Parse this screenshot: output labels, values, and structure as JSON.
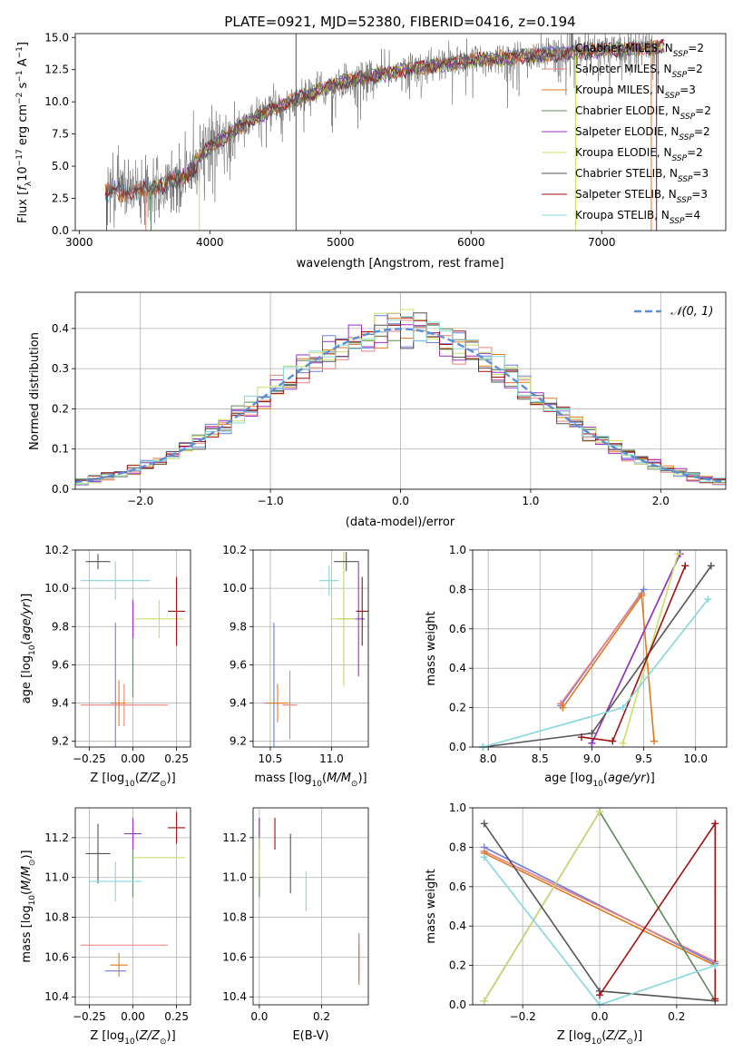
{
  "figure": {
    "title": "PLATE=0921, MJD=52380, FIBERID=0416, z=0.194"
  },
  "colors": {
    "chabrier_miles": "#6b7ee5",
    "salpeter_miles": "#e8807f",
    "kroupa_miles": "#e07a1f",
    "chabrier_elodie": "#5b8c5a",
    "salpeter_elodie": "#9b30c0",
    "kroupa_elodie": "#c8e06a",
    "chabrier_stelib": "#555555",
    "salpeter_stelib": "#a01010",
    "kroupa_stelib": "#86d7de",
    "normal_curve": "#5a8fd6"
  },
  "chart_data": [
    {
      "id": "spectrum",
      "type": "line",
      "xlabel": "wavelength [Angstrom, rest frame]",
      "ylabel": "Flux [f_λ 10^-17 erg cm^-2 s^-1 A^-1]",
      "xlim": [
        2970,
        7950
      ],
      "ylim": [
        0,
        15.3
      ],
      "xticks": [
        3000,
        4000,
        5000,
        6000,
        7000
      ],
      "yticks": [
        0.0,
        2.5,
        5.0,
        7.5,
        10.0,
        12.5,
        15.0
      ],
      "grid": false,
      "legend_position": "upper-right",
      "data_envelope": {
        "x": [
          3200,
          3500,
          3800,
          4000,
          4300,
          4600,
          5000,
          5500,
          6000,
          6500,
          7000,
          7500
        ],
        "y": [
          3.3,
          3.5,
          4.5,
          6.5,
          8.5,
          10.0,
          11.5,
          12.5,
          13.2,
          13.6,
          14.0,
          14.3
        ]
      },
      "legend": [
        {
          "label": "Chabrier MILES, N",
          "sub": "SSP",
          "suffix": "=2",
          "color_key": "chabrier_miles"
        },
        {
          "label": "Salpeter MILES, N",
          "sub": "SSP",
          "suffix": "=2",
          "color_key": "salpeter_miles"
        },
        {
          "label": "Kroupa MILES, N",
          "sub": "SSP",
          "suffix": "=3",
          "color_key": "kroupa_miles"
        },
        {
          "label": "Chabrier ELODIE, N",
          "sub": "SSP",
          "suffix": "=2",
          "color_key": "chabrier_elodie"
        },
        {
          "label": "Salpeter ELODIE, N",
          "sub": "SSP",
          "suffix": "=2",
          "color_key": "salpeter_elodie"
        },
        {
          "label": "Kroupa ELODIE, N",
          "sub": "SSP",
          "suffix": "=2",
          "color_key": "kroupa_elodie"
        },
        {
          "label": "Chabrier STELIB, N",
          "sub": "SSP",
          "suffix": "=3",
          "color_key": "chabrier_stelib"
        },
        {
          "label": "Salpeter STELIB, N",
          "sub": "SSP",
          "suffix": "=3",
          "color_key": "salpeter_stelib"
        },
        {
          "label": "Kroupa STELIB, N",
          "sub": "SSP",
          "suffix": "=4",
          "color_key": "kroupa_stelib"
        }
      ]
    },
    {
      "id": "residuals",
      "type": "histogram",
      "xlabel": "(data-model)/error",
      "ylabel": "Normed distribution",
      "xlim": [
        -2.5,
        2.5
      ],
      "ylim": [
        0,
        0.49
      ],
      "xticks": [
        -2,
        -1,
        0,
        1,
        2
      ],
      "yticks": [
        0.0,
        0.1,
        0.2,
        0.3,
        0.4
      ],
      "grid": true,
      "legend_position": "upper-right",
      "legend_label": "𝒩(0, 1)",
      "bin_width": 0.1
    },
    {
      "id": "z_age",
      "type": "errorbar",
      "xlabel": "Z [log10(Z/Z☉)]",
      "ylabel": "age [log10(age/yr)]",
      "xlim": [
        -0.33,
        0.33
      ],
      "ylim": [
        9.17,
        10.2
      ],
      "xticks": [
        -0.25,
        0.0,
        0.25
      ],
      "yticks": [
        9.2,
        9.4,
        9.6,
        9.8,
        10.0,
        10.2
      ],
      "grid": true,
      "points": [
        {
          "c": "chabrier_miles",
          "x": -0.1,
          "y": 9.4,
          "xerr": 0.03,
          "yerr": 0.42
        },
        {
          "c": "salpeter_miles",
          "x": -0.05,
          "y": 9.39,
          "xerr": 0.25,
          "yerr": 0.11
        },
        {
          "c": "kroupa_miles",
          "x": -0.08,
          "y": 9.4,
          "xerr": 0.04,
          "yerr": 0.12
        },
        {
          "c": "chabrier_elodie",
          "x": 0.0,
          "y": 9.68,
          "xerr": 0.0,
          "yerr": 0.25
        },
        {
          "c": "salpeter_elodie",
          "x": 0.0,
          "y": 9.84,
          "xerr": 0.0,
          "yerr": 0.1
        },
        {
          "c": "kroupa_elodie",
          "x": 0.15,
          "y": 9.84,
          "xerr": 0.14,
          "yerr": 0.1
        },
        {
          "c": "chabrier_stelib",
          "x": -0.2,
          "y": 10.14,
          "xerr": 0.07,
          "yerr": 0.04
        },
        {
          "c": "salpeter_stelib",
          "x": 0.25,
          "y": 9.88,
          "xerr": 0.05,
          "yerr": 0.18
        },
        {
          "c": "kroupa_stelib",
          "x": -0.1,
          "y": 10.04,
          "xerr": 0.2,
          "yerr": 0.1
        }
      ]
    },
    {
      "id": "mass_age",
      "type": "errorbar",
      "xlabel": "mass [log10(M/M☉)]",
      "ylabel": "",
      "xlim": [
        10.36,
        11.3
      ],
      "ylim": [
        9.17,
        10.2
      ],
      "xticks": [
        10.5,
        11.0
      ],
      "yticks": [
        9.2,
        9.4,
        9.6,
        9.8,
        10.0,
        10.2
      ],
      "grid": true,
      "points": [
        {
          "c": "chabrier_miles",
          "x": 10.53,
          "y": 9.4,
          "xerr": 0.08,
          "yerr": 0.42
        },
        {
          "c": "salpeter_miles",
          "x": 10.66,
          "y": 9.39,
          "xerr": 0.06,
          "yerr": 0.18
        },
        {
          "c": "kroupa_miles",
          "x": 10.56,
          "y": 9.4,
          "xerr": 0.09,
          "yerr": 0.1
        },
        {
          "c": "chabrier_elodie",
          "x": 11.1,
          "y": 9.84,
          "xerr": 0.05,
          "yerr": 0.35
        },
        {
          "c": "salpeter_elodie",
          "x": 11.22,
          "y": 9.84,
          "xerr": 0.05,
          "yerr": 0.3
        },
        {
          "c": "kroupa_elodie",
          "x": 11.1,
          "y": 9.84,
          "xerr": 0.1,
          "yerr": 0.35
        },
        {
          "c": "chabrier_stelib",
          "x": 11.12,
          "y": 10.14,
          "xerr": 0.1,
          "yerr": 0.05
        },
        {
          "c": "salpeter_stelib",
          "x": 11.25,
          "y": 9.88,
          "xerr": 0.05,
          "yerr": 0.18
        },
        {
          "c": "kroupa_stelib",
          "x": 10.98,
          "y": 10.04,
          "xerr": 0.08,
          "yerr": 0.08
        }
      ]
    },
    {
      "id": "age_weight",
      "type": "line",
      "xlabel": "age [log10(age/yr)]",
      "ylabel": "mass weight",
      "xlim": [
        7.85,
        10.3
      ],
      "ylim": [
        0,
        1.0
      ],
      "xticks": [
        8.0,
        8.5,
        9.0,
        9.5,
        10.0
      ],
      "yticks": [
        0.0,
        0.2,
        0.4,
        0.6,
        0.8,
        1.0
      ],
      "grid": true,
      "series": [
        {
          "c": "chabrier_miles",
          "x": [
            8.7,
            9.5
          ],
          "y": [
            0.21,
            0.8
          ]
        },
        {
          "c": "salpeter_miles",
          "x": [
            8.7,
            9.48
          ],
          "y": [
            0.22,
            0.78
          ]
        },
        {
          "c": "kroupa_miles",
          "x": [
            8.72,
            9.48,
            9.6
          ],
          "y": [
            0.2,
            0.77,
            0.03
          ]
        },
        {
          "c": "chabrier_elodie",
          "x": [
            9.0,
            9.85
          ],
          "y": [
            0.02,
            0.98
          ]
        },
        {
          "c": "salpeter_elodie",
          "x": [
            9.0,
            9.85
          ],
          "y": [
            0.02,
            0.98
          ]
        },
        {
          "c": "kroupa_elodie",
          "x": [
            9.3,
            9.83
          ],
          "y": [
            0.02,
            0.98
          ]
        },
        {
          "c": "chabrier_stelib",
          "x": [
            7.95,
            9.0,
            10.15
          ],
          "y": [
            0.0,
            0.07,
            0.92
          ]
        },
        {
          "c": "salpeter_stelib",
          "x": [
            8.9,
            9.2,
            9.9
          ],
          "y": [
            0.05,
            0.03,
            0.92
          ]
        },
        {
          "c": "kroupa_stelib",
          "x": [
            7.95,
            9.3,
            10.12
          ],
          "y": [
            0.0,
            0.2,
            0.75
          ]
        }
      ]
    },
    {
      "id": "z_mass",
      "type": "errorbar",
      "xlabel": "Z [log10(Z/Z☉)]",
      "ylabel": "mass [log10(M/M☉)]",
      "xlim": [
        -0.33,
        0.33
      ],
      "ylim": [
        10.36,
        11.35
      ],
      "xticks": [
        -0.25,
        0.0,
        0.25
      ],
      "yticks": [
        10.4,
        10.6,
        10.8,
        11.0,
        11.2
      ],
      "grid": true,
      "points": [
        {
          "c": "chabrier_miles",
          "x": -0.1,
          "y": 10.53,
          "xerr": 0.06,
          "yerr": 0.0
        },
        {
          "c": "salpeter_miles",
          "x": -0.05,
          "y": 10.66,
          "xerr": 0.25,
          "yerr": 0.0
        },
        {
          "c": "kroupa_miles",
          "x": -0.08,
          "y": 10.56,
          "xerr": 0.05,
          "yerr": 0.06
        },
        {
          "c": "chabrier_elodie",
          "x": 0.0,
          "y": 11.1,
          "xerr": 0.0,
          "yerr": 0.2
        },
        {
          "c": "salpeter_elodie",
          "x": 0.0,
          "y": 11.22,
          "xerr": 0.05,
          "yerr": 0.08
        },
        {
          "c": "kroupa_elodie",
          "x": 0.15,
          "y": 11.1,
          "xerr": 0.15,
          "yerr": 0.0
        },
        {
          "c": "chabrier_stelib",
          "x": -0.2,
          "y": 11.12,
          "xerr": 0.07,
          "yerr": 0.15
        },
        {
          "c": "salpeter_stelib",
          "x": 0.25,
          "y": 11.25,
          "xerr": 0.05,
          "yerr": 0.08
        },
        {
          "c": "kroupa_stelib",
          "x": -0.1,
          "y": 10.98,
          "xerr": 0.15,
          "yerr": 0.1
        }
      ]
    },
    {
      "id": "ebv_mass",
      "type": "errorbar",
      "xlabel": "E(B-V)",
      "ylabel": "",
      "xlim": [
        -0.02,
        0.35
      ],
      "ylim": [
        10.36,
        11.35
      ],
      "xticks": [
        0.0,
        0.2
      ],
      "yticks": [
        10.4,
        10.6,
        10.8,
        11.0,
        11.2
      ],
      "grid": true,
      "points": [
        {
          "c": "chabrier_miles",
          "x": 0.32,
          "y": 10.6,
          "xerr": 0.0,
          "yerr": 0.12
        },
        {
          "c": "salpeter_miles",
          "x": 0.32,
          "y": 10.6,
          "xerr": 0.0,
          "yerr": 0.1
        },
        {
          "c": "kroupa_miles",
          "x": 0.32,
          "y": 10.56,
          "xerr": 0.0,
          "yerr": 0.1
        },
        {
          "c": "chabrier_elodie",
          "x": 0.0,
          "y": 11.1,
          "xerr": 0.0,
          "yerr": 0.2
        },
        {
          "c": "salpeter_elodie",
          "x": 0.0,
          "y": 11.22,
          "xerr": 0.0,
          "yerr": 0.08
        },
        {
          "c": "kroupa_elodie",
          "x": 0.0,
          "y": 11.1,
          "xerr": 0.0,
          "yerr": 0.1
        },
        {
          "c": "chabrier_stelib",
          "x": 0.1,
          "y": 11.07,
          "xerr": 0.0,
          "yerr": 0.15
        },
        {
          "c": "salpeter_stelib",
          "x": 0.05,
          "y": 11.22,
          "xerr": 0.0,
          "yerr": 0.08
        },
        {
          "c": "kroupa_stelib",
          "x": 0.15,
          "y": 10.93,
          "xerr": 0.0,
          "yerr": 0.1
        }
      ]
    },
    {
      "id": "z_weight",
      "type": "line",
      "xlabel": "Z [log10(Z/Z☉)]",
      "ylabel": "mass weight",
      "xlim": [
        -0.33,
        0.33
      ],
      "ylim": [
        0,
        1.0
      ],
      "xticks": [
        -0.2,
        0.0,
        0.2
      ],
      "yticks": [
        0.0,
        0.2,
        0.4,
        0.6,
        0.8,
        1.0
      ],
      "grid": true,
      "series": [
        {
          "c": "chabrier_miles",
          "x": [
            -0.3,
            0.3
          ],
          "y": [
            0.8,
            0.21
          ]
        },
        {
          "c": "salpeter_miles",
          "x": [
            -0.3,
            0.3
          ],
          "y": [
            0.78,
            0.22
          ]
        },
        {
          "c": "kroupa_miles",
          "x": [
            -0.3,
            0.3
          ],
          "y": [
            0.77,
            0.2
          ]
        },
        {
          "c": "chabrier_elodie",
          "x": [
            0.0,
            0.3
          ],
          "y": [
            0.98,
            0.02
          ]
        },
        {
          "c": "salpeter_elodie",
          "x": [
            -0.3,
            0.0
          ],
          "y": [
            0.02,
            0.98
          ]
        },
        {
          "c": "kroupa_elodie",
          "x": [
            -0.3,
            0.0
          ],
          "y": [
            0.02,
            0.98
          ]
        },
        {
          "c": "chabrier_stelib",
          "x": [
            -0.3,
            0.0,
            0.3
          ],
          "y": [
            0.92,
            0.07,
            0.02
          ]
        },
        {
          "c": "salpeter_stelib",
          "x": [
            0.0,
            0.3,
            0.3
          ],
          "y": [
            0.05,
            0.92,
            0.03
          ]
        },
        {
          "c": "kroupa_stelib",
          "x": [
            -0.3,
            0.0,
            0.3
          ],
          "y": [
            0.75,
            0.0,
            0.2
          ]
        }
      ]
    }
  ]
}
